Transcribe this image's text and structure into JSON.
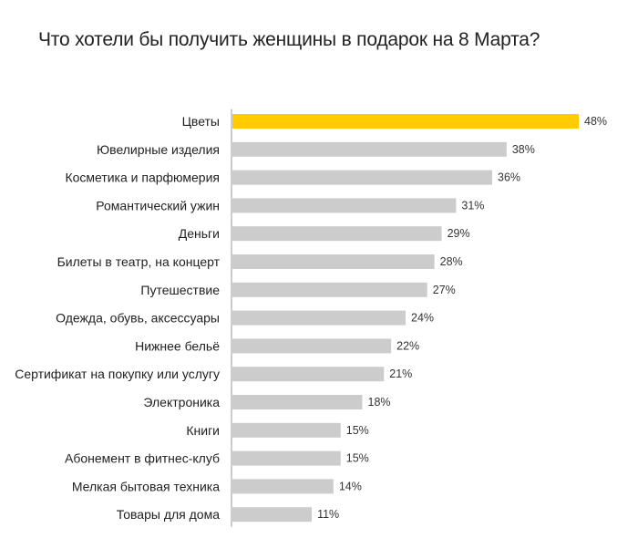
{
  "chart_data": {
    "type": "bar",
    "orientation": "horizontal",
    "title": "Что хотели бы получить женщины в подарок на 8 Марта?",
    "categories": [
      "Цветы",
      "Ювелирные изделия",
      "Косметика и парфюмерия",
      "Романтический ужин",
      "Деньги",
      "Билеты в театр, на концерт",
      "Путешествие",
      "Одежда, обувь, аксессуары",
      "Нижнее бельё",
      "Сертификат на покупку или услугу",
      "Электроника",
      "Книги",
      "Абонемент в фитнес-клуб",
      "Мелкая бытовая техника",
      "Товары для дома"
    ],
    "values": [
      48,
      38,
      36,
      31,
      29,
      28,
      27,
      24,
      22,
      21,
      18,
      15,
      15,
      14,
      11
    ],
    "value_labels": [
      "48%",
      "38%",
      "36%",
      "31%",
      "29%",
      "28%",
      "27%",
      "24%",
      "22%",
      "21%",
      "18%",
      "15%",
      "15%",
      "14%",
      "11%"
    ],
    "unit": "%",
    "xlim": [
      0,
      48
    ],
    "grid": false,
    "legend": "none",
    "colors": {
      "highlight": "#FFCC00",
      "bar": "#CCCCCC",
      "axis": "#999999"
    }
  }
}
